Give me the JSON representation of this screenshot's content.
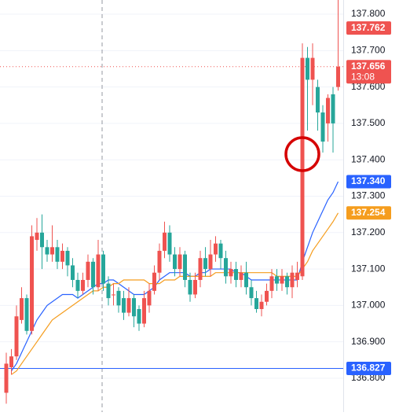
{
  "chart_data": {
    "type": "candlestick",
    "up_color": "#ef5350",
    "down_color": "#26a69a",
    "open": [
      136.76,
      136.83,
      136.86,
      136.96,
      137.02,
      136.93,
      137.18,
      137.2,
      137.16,
      137.14,
      137.16,
      137.12,
      137.15,
      137.11,
      137.07,
      137.04,
      137.07,
      137.12,
      137.05,
      137.14,
      137.06,
      137.03,
      137.04,
      137.02,
      136.98,
      137.02,
      136.99,
      136.95,
      137.0,
      137.04,
      137.09,
      137.15,
      137.2,
      137.14,
      137.1,
      137.14,
      137.07,
      137.03,
      137.07,
      137.13,
      137.1,
      137.14,
      137.17,
      137.13,
      137.08,
      137.1,
      137.07,
      137.09,
      137.05,
      137.02,
      136.99,
      137.01,
      137.04,
      137.08,
      137.06,
      137.08,
      137.05,
      137.07,
      137.08,
      137.68,
      137.62,
      137.6,
      137.53,
      137.5,
      137.58,
      137.6
    ],
    "high": [
      136.87,
      136.88,
      137.0,
      137.05,
      137.03,
      137.22,
      137.24,
      137.25,
      137.18,
      137.22,
      137.18,
      137.17,
      137.16,
      137.13,
      137.09,
      137.09,
      137.14,
      137.13,
      137.18,
      137.15,
      137.08,
      137.06,
      137.05,
      137.04,
      137.05,
      137.03,
      137.0,
      137.04,
      137.06,
      137.11,
      137.17,
      137.23,
      137.22,
      137.16,
      137.16,
      137.15,
      137.09,
      137.09,
      137.15,
      137.16,
      137.18,
      137.19,
      137.18,
      137.15,
      137.12,
      137.12,
      137.11,
      137.12,
      137.07,
      137.04,
      137.03,
      137.06,
      137.1,
      137.1,
      137.1,
      137.09,
      137.11,
      137.12,
      137.72,
      137.71,
      137.72,
      137.62,
      137.55,
      137.58,
      137.6,
      137.85
    ],
    "low": [
      136.73,
      136.81,
      136.85,
      136.95,
      136.92,
      136.92,
      137.15,
      137.1,
      137.12,
      137.12,
      137.1,
      137.1,
      137.08,
      137.05,
      137.02,
      137.03,
      137.05,
      137.03,
      137.04,
      137.04,
      137.0,
      137.0,
      136.98,
      136.96,
      136.97,
      136.94,
      136.93,
      136.94,
      136.98,
      137.03,
      137.07,
      137.13,
      137.12,
      137.08,
      137.08,
      137.05,
      137.01,
      137.02,
      137.05,
      137.08,
      137.08,
      137.12,
      137.1,
      137.06,
      137.06,
      137.05,
      137.05,
      137.03,
      137.0,
      136.98,
      136.97,
      137.0,
      137.02,
      137.04,
      137.04,
      137.03,
      137.02,
      137.05,
      137.07,
      137.48,
      137.55,
      137.48,
      137.42,
      137.45,
      137.42,
      137.59
    ],
    "close": [
      136.84,
      136.86,
      136.97,
      137.02,
      136.93,
      137.19,
      137.2,
      137.16,
      137.14,
      137.16,
      137.12,
      137.15,
      137.11,
      137.07,
      137.04,
      137.07,
      137.12,
      137.05,
      137.14,
      137.06,
      137.02,
      137.03,
      137.0,
      136.98,
      137.02,
      136.97,
      136.95,
      137.02,
      137.04,
      137.09,
      137.15,
      137.2,
      137.14,
      137.1,
      137.14,
      137.07,
      137.03,
      137.07,
      137.13,
      137.1,
      137.14,
      137.17,
      137.13,
      137.08,
      137.1,
      137.07,
      137.09,
      137.05,
      137.02,
      136.99,
      137.01,
      137.04,
      137.08,
      137.06,
      137.08,
      137.05,
      137.09,
      137.09,
      137.68,
      137.62,
      137.68,
      137.53,
      137.45,
      137.57,
      137.5,
      137.656
    ],
    "series": [
      {
        "color": "#2962ff",
        "values": [
          null,
          136.82,
          136.84,
          136.87,
          136.9,
          136.93,
          136.96,
          136.98,
          137.0,
          137.01,
          137.02,
          137.03,
          137.03,
          137.03,
          137.02,
          137.03,
          137.04,
          137.05,
          137.06,
          137.06,
          137.07,
          137.07,
          137.06,
          137.05,
          137.04,
          137.03,
          137.03,
          137.03,
          137.04,
          137.05,
          137.07,
          137.08,
          137.09,
          137.09,
          137.09,
          137.09,
          137.08,
          137.08,
          137.09,
          137.09,
          137.1,
          137.1,
          137.1,
          137.1,
          137.1,
          137.09,
          137.09,
          137.08,
          137.07,
          137.07,
          137.07,
          137.07,
          137.07,
          137.07,
          137.07,
          137.07,
          137.07,
          137.07,
          137.12,
          137.16,
          137.2,
          137.23,
          137.26,
          137.29,
          137.31,
          137.34
        ]
      },
      {
        "color": "#f59d1e",
        "values": [
          null,
          136.81,
          136.82,
          136.84,
          136.86,
          136.88,
          136.9,
          136.92,
          136.94,
          136.96,
          136.97,
          136.98,
          136.99,
          137.0,
          137.01,
          137.02,
          137.03,
          137.04,
          137.04,
          137.05,
          137.05,
          137.06,
          137.06,
          137.07,
          137.07,
          137.07,
          137.07,
          137.07,
          137.06,
          137.06,
          137.06,
          137.07,
          137.07,
          137.07,
          137.08,
          137.08,
          137.08,
          137.08,
          137.08,
          137.08,
          137.08,
          137.09,
          137.09,
          137.09,
          137.09,
          137.09,
          137.09,
          137.09,
          137.09,
          137.09,
          137.09,
          137.09,
          137.09,
          137.08,
          137.08,
          137.08,
          137.08,
          137.08,
          137.1,
          137.12,
          137.15,
          137.17,
          137.19,
          137.21,
          137.23,
          137.254
        ]
      }
    ],
    "ylim": [
      136.707,
      137.839
    ],
    "yticks": [
      {
        "value": 136.8,
        "label": "136.800"
      },
      {
        "value": 136.9,
        "label": "136.900"
      },
      {
        "value": 137.0,
        "label": "137.000"
      },
      {
        "value": 137.1,
        "label": "137.100"
      },
      {
        "value": 137.2,
        "label": "137.200"
      },
      {
        "value": 137.3,
        "label": "137.300"
      },
      {
        "value": 137.4,
        "label": "137.400"
      },
      {
        "value": 137.5,
        "label": "137.500"
      },
      {
        "value": 137.6,
        "label": "137.600"
      },
      {
        "value": 137.7,
        "label": "137.700"
      },
      {
        "value": 137.8,
        "label": "137.800"
      }
    ],
    "grid": true,
    "horizontal_lines": [
      {
        "value": 136.827,
        "color": "#2962ff",
        "style": "solid"
      },
      {
        "value": 137.656,
        "color": "#ef5350",
        "style": "dotted"
      }
    ],
    "price_labels": [
      {
        "value": 137.762,
        "label": "137.762",
        "color": "#ef5350"
      },
      {
        "value": 137.656,
        "label": "137.656",
        "countdown": "13:08",
        "color": "#ef5350"
      },
      {
        "value": 137.34,
        "label": "137.340",
        "color": "#2962ff"
      },
      {
        "value": 137.254,
        "label": "137.254",
        "color": "#f59d1e"
      },
      {
        "value": 136.827,
        "label": "136.827",
        "color": "#2962ff"
      }
    ]
  }
}
